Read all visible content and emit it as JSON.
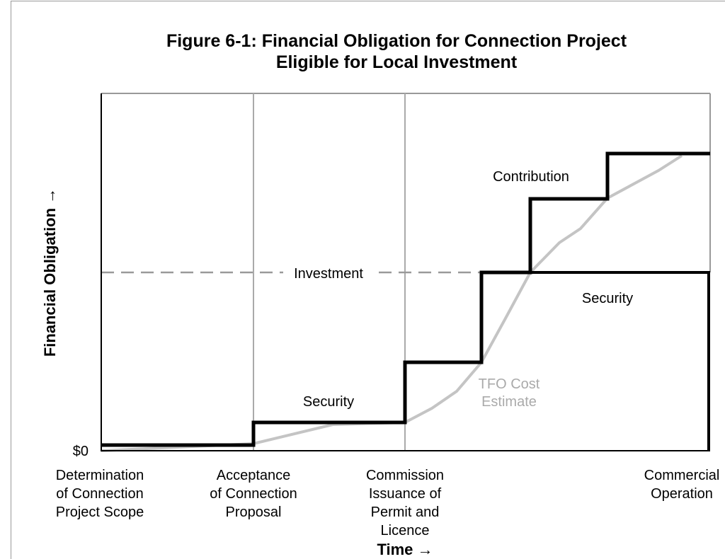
{
  "title": [
    "Figure 6-1: Financial Obligation for Connection Project",
    "Eligible for Local Investment"
  ],
  "y_axis_label": "Financial Obligation →",
  "x_axis_label": "Time →",
  "y_origin_label": "$0",
  "milestones": [
    [
      "Determination",
      "of  Connection",
      "Project Scope"
    ],
    [
      "Acceptance",
      "of Connection",
      "Proposal"
    ],
    [
      "Commission",
      "Issuance of",
      "Permit and",
      "Licence"
    ],
    [
      "Commercial",
      "Operation"
    ]
  ],
  "annotations": {
    "contribution": "Contribution",
    "investment": "Investment",
    "security_upper": "Security",
    "security_lower": "Security",
    "cost_estimate": [
      "TFO Cost",
      "Estimate"
    ]
  }
}
